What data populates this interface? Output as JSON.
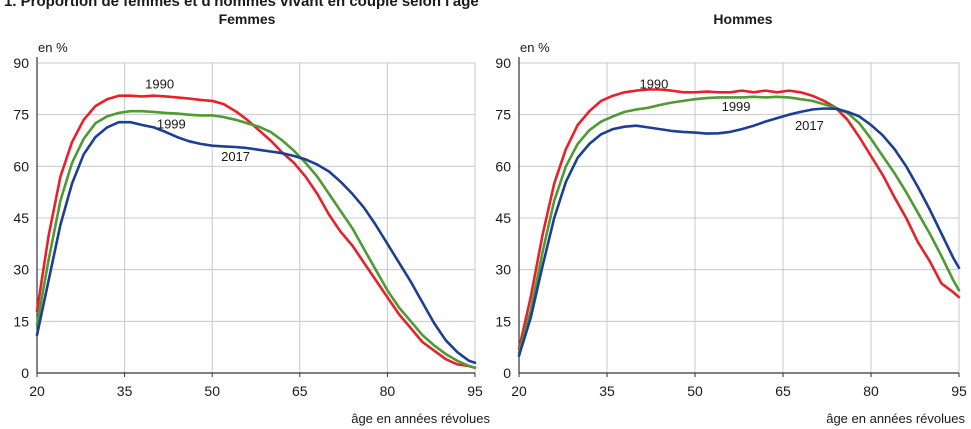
{
  "page": {
    "title": "1. Proportion de femmes et d'hommes vivant en couple selon l'âge"
  },
  "colors": {
    "1990": "#e8202a",
    "1999": "#4f9a32",
    "2017": "#1c3f94",
    "grid": "#c8c8c8",
    "axis": "#333333"
  },
  "chart_data": [
    {
      "type": "line",
      "title": "Femmes",
      "xlabel": "âge en années révolues",
      "ylabel": "en %",
      "xlim": [
        20,
        95
      ],
      "ylim": [
        0,
        90
      ],
      "xticks": [
        20,
        35,
        50,
        65,
        80,
        95
      ],
      "yticks": [
        0,
        15,
        30,
        45,
        60,
        75,
        90
      ],
      "grid": true,
      "series": [
        {
          "name": "1990",
          "color": "#e8202a",
          "x": [
            20,
            22,
            24,
            26,
            28,
            30,
            32,
            34,
            36,
            38,
            40,
            42,
            44,
            46,
            48,
            50,
            52,
            54,
            56,
            58,
            60,
            62,
            64,
            66,
            68,
            70,
            72,
            74,
            76,
            78,
            80,
            82,
            84,
            86,
            88,
            90,
            92,
            94,
            95
          ],
          "values": [
            18,
            40,
            57,
            67,
            73.5,
            77.5,
            79.5,
            80.5,
            80.5,
            80.3,
            80.5,
            80.3,
            80,
            79.7,
            79.3,
            79,
            78,
            76,
            73.5,
            70.5,
            67.5,
            64,
            61,
            57,
            52,
            46,
            41,
            37,
            32,
            27,
            22,
            17,
            13,
            9,
            6.5,
            4,
            2.5,
            2,
            1.5
          ],
          "label_pos": [
            41,
            84
          ]
        },
        {
          "name": "1999",
          "color": "#4f9a32",
          "x": [
            20,
            22,
            24,
            26,
            28,
            30,
            32,
            34,
            36,
            38,
            40,
            42,
            44,
            46,
            48,
            50,
            52,
            54,
            56,
            58,
            60,
            62,
            64,
            66,
            68,
            70,
            72,
            74,
            76,
            78,
            80,
            82,
            84,
            86,
            88,
            90,
            92,
            94,
            95
          ],
          "values": [
            14,
            33,
            50,
            61,
            68,
            72.5,
            74.5,
            75.5,
            76,
            76,
            75.8,
            75.5,
            75.3,
            75,
            74.8,
            74.8,
            74.3,
            73.5,
            72.5,
            71.5,
            70,
            67.5,
            64.5,
            61,
            57,
            52,
            47,
            42,
            36,
            30,
            24,
            19,
            15,
            11,
            8,
            5.5,
            3.5,
            2,
            1.5
          ],
          "label_pos": [
            43,
            72.5
          ]
        },
        {
          "name": "2017",
          "color": "#1c3f94",
          "x": [
            20,
            22,
            24,
            26,
            28,
            30,
            32,
            34,
            36,
            38,
            40,
            42,
            44,
            46,
            48,
            50,
            52,
            54,
            56,
            58,
            60,
            62,
            64,
            66,
            68,
            70,
            72,
            74,
            76,
            78,
            80,
            82,
            84,
            86,
            88,
            90,
            92,
            94,
            95
          ],
          "values": [
            11,
            27,
            43,
            55,
            63.5,
            68.5,
            71.3,
            72.8,
            72.8,
            72,
            71.3,
            70,
            68.5,
            67.3,
            66.5,
            66,
            65.8,
            65.6,
            65.3,
            64.8,
            64.3,
            63.8,
            63,
            62,
            60.5,
            58.5,
            55.5,
            52,
            48,
            43,
            37.5,
            32,
            26.5,
            20.5,
            14.5,
            9.5,
            6,
            3.5,
            3
          ],
          "label_pos": [
            54,
            63
          ]
        }
      ]
    },
    {
      "type": "line",
      "title": "Hommes",
      "xlabel": "âge en années révolues",
      "ylabel": "en %",
      "xlim": [
        20,
        95
      ],
      "ylim": [
        0,
        90
      ],
      "xticks": [
        20,
        35,
        50,
        65,
        80,
        95
      ],
      "yticks": [
        0,
        15,
        30,
        45,
        60,
        75,
        90
      ],
      "grid": true,
      "series": [
        {
          "name": "1990",
          "color": "#e8202a",
          "x": [
            20,
            22,
            24,
            26,
            28,
            30,
            32,
            34,
            36,
            38,
            40,
            42,
            44,
            46,
            48,
            50,
            52,
            54,
            56,
            58,
            60,
            62,
            64,
            66,
            68,
            70,
            72,
            74,
            76,
            78,
            80,
            82,
            84,
            86,
            88,
            90,
            92,
            94,
            95
          ],
          "values": [
            7,
            22,
            40,
            55,
            65,
            72,
            76,
            79,
            80.5,
            81.5,
            82,
            82.3,
            82.3,
            82,
            81.5,
            81.5,
            81.7,
            81.5,
            81.5,
            82,
            81.5,
            82,
            81.5,
            82,
            81.5,
            80.5,
            79,
            77,
            73.5,
            68.5,
            63,
            57.5,
            51,
            45,
            38,
            32.5,
            26,
            23.5,
            22
          ],
          "label_pos": [
            43,
            84
          ]
        },
        {
          "name": "1999",
          "color": "#4f9a32",
          "x": [
            20,
            22,
            24,
            26,
            28,
            30,
            32,
            34,
            36,
            38,
            40,
            42,
            44,
            46,
            48,
            50,
            52,
            54,
            56,
            58,
            60,
            62,
            64,
            66,
            68,
            70,
            72,
            74,
            76,
            78,
            80,
            82,
            84,
            86,
            88,
            90,
            92,
            94,
            95
          ],
          "values": [
            6,
            18,
            35,
            50,
            60,
            66.5,
            70.5,
            73,
            74.5,
            75.8,
            76.5,
            77,
            77.8,
            78.5,
            79,
            79.5,
            79.8,
            80,
            80,
            80,
            80.2,
            80,
            80.2,
            80,
            79.5,
            79,
            78,
            77,
            75.5,
            72.5,
            68,
            63,
            58,
            52.5,
            46.5,
            40.5,
            34,
            27,
            24
          ],
          "label_pos": [
            57,
            77.5
          ]
        },
        {
          "name": "2017",
          "color": "#1c3f94",
          "x": [
            20,
            22,
            24,
            26,
            28,
            30,
            32,
            34,
            36,
            38,
            40,
            42,
            44,
            46,
            48,
            50,
            52,
            54,
            56,
            58,
            60,
            62,
            64,
            66,
            68,
            70,
            72,
            74,
            76,
            78,
            80,
            82,
            84,
            86,
            88,
            90,
            92,
            94,
            95
          ],
          "values": [
            5,
            16,
            31,
            45,
            55.5,
            62.5,
            66.5,
            69.3,
            70.8,
            71.5,
            71.8,
            71.3,
            70.8,
            70.3,
            70,
            69.8,
            69.5,
            69.6,
            70,
            70.8,
            71.8,
            73,
            74,
            75,
            75.8,
            76.5,
            76.8,
            76.7,
            75.8,
            74.5,
            72,
            69,
            65,
            60,
            54,
            47.5,
            40.5,
            33.5,
            30.5
          ],
          "label_pos": [
            69.5,
            72
          ]
        }
      ]
    }
  ]
}
